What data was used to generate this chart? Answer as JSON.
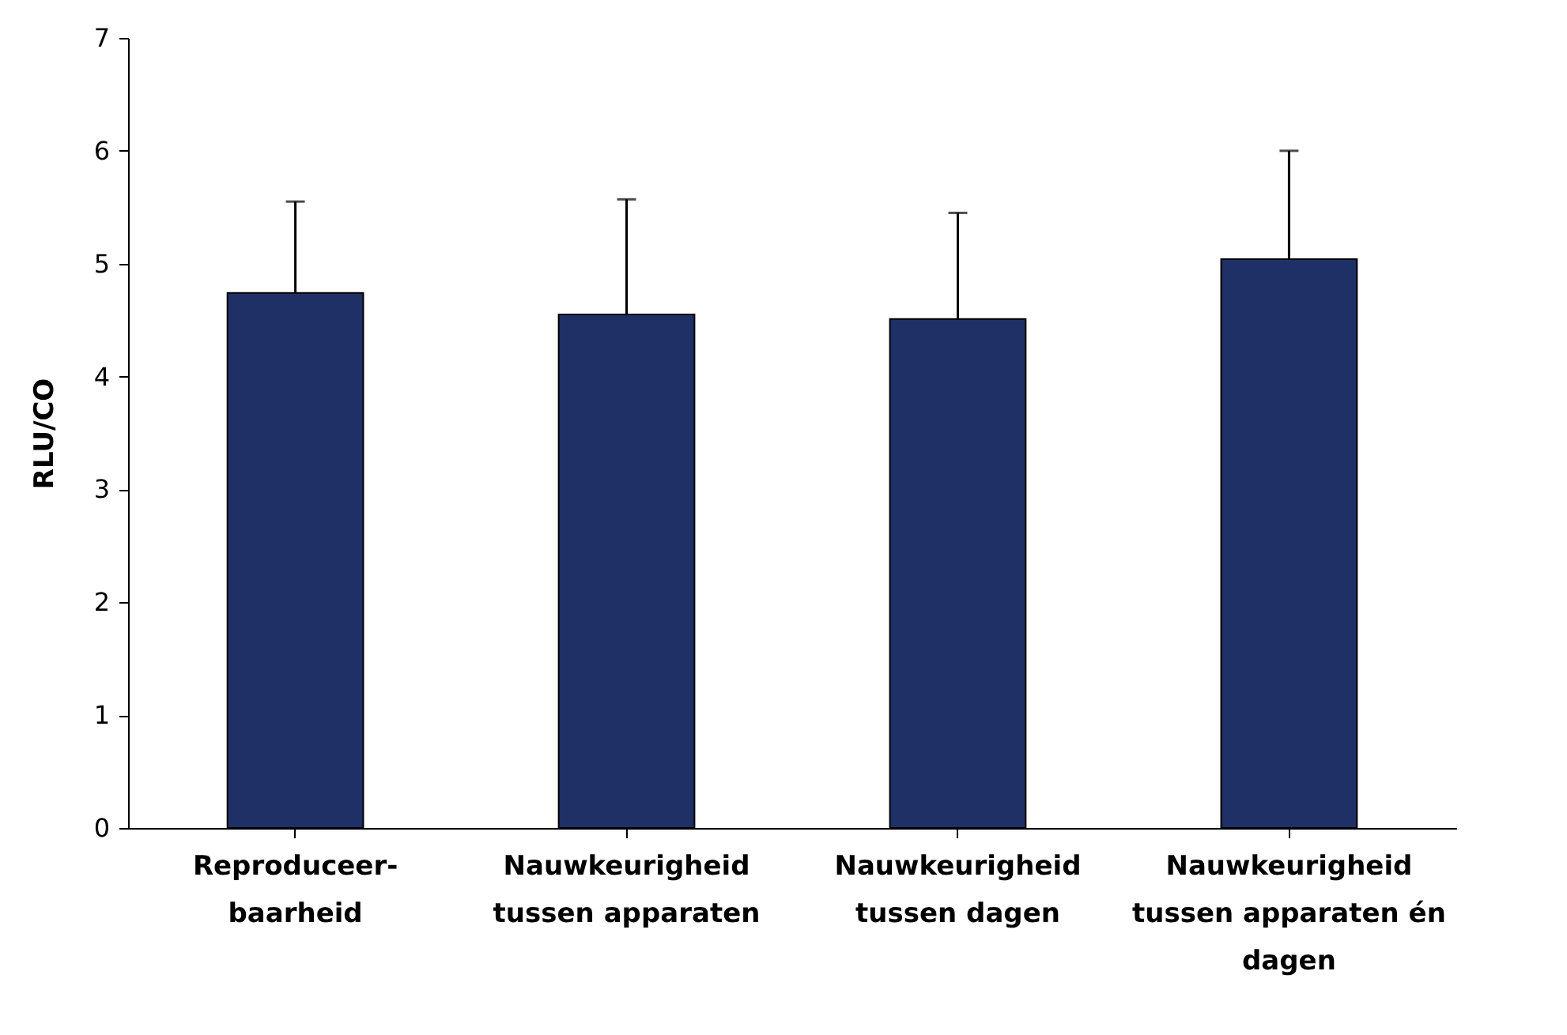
{
  "chart_data": {
    "type": "bar",
    "ylabel": "RLU/CO",
    "categories": [
      "Reproduceer-\nbaarheid",
      "Nauwkeurigheid\ntussen apparaten",
      "Nauwkeurigheid\ntussen dagen",
      "Nauwkeurigheid\ntussen apparaten én\ndagen"
    ],
    "values": [
      4.74,
      4.55,
      4.51,
      5.04
    ],
    "errors": [
      [
        4.74,
        5.55
      ],
      [
        4.55,
        5.57
      ],
      [
        4.51,
        5.45
      ],
      [
        5.04,
        6.0
      ]
    ],
    "color": "#1f3066",
    "ylim": [
      0,
      7
    ],
    "yticks": [
      0,
      1,
      2,
      3,
      4,
      5,
      6,
      7
    ],
    "grid": false
  }
}
